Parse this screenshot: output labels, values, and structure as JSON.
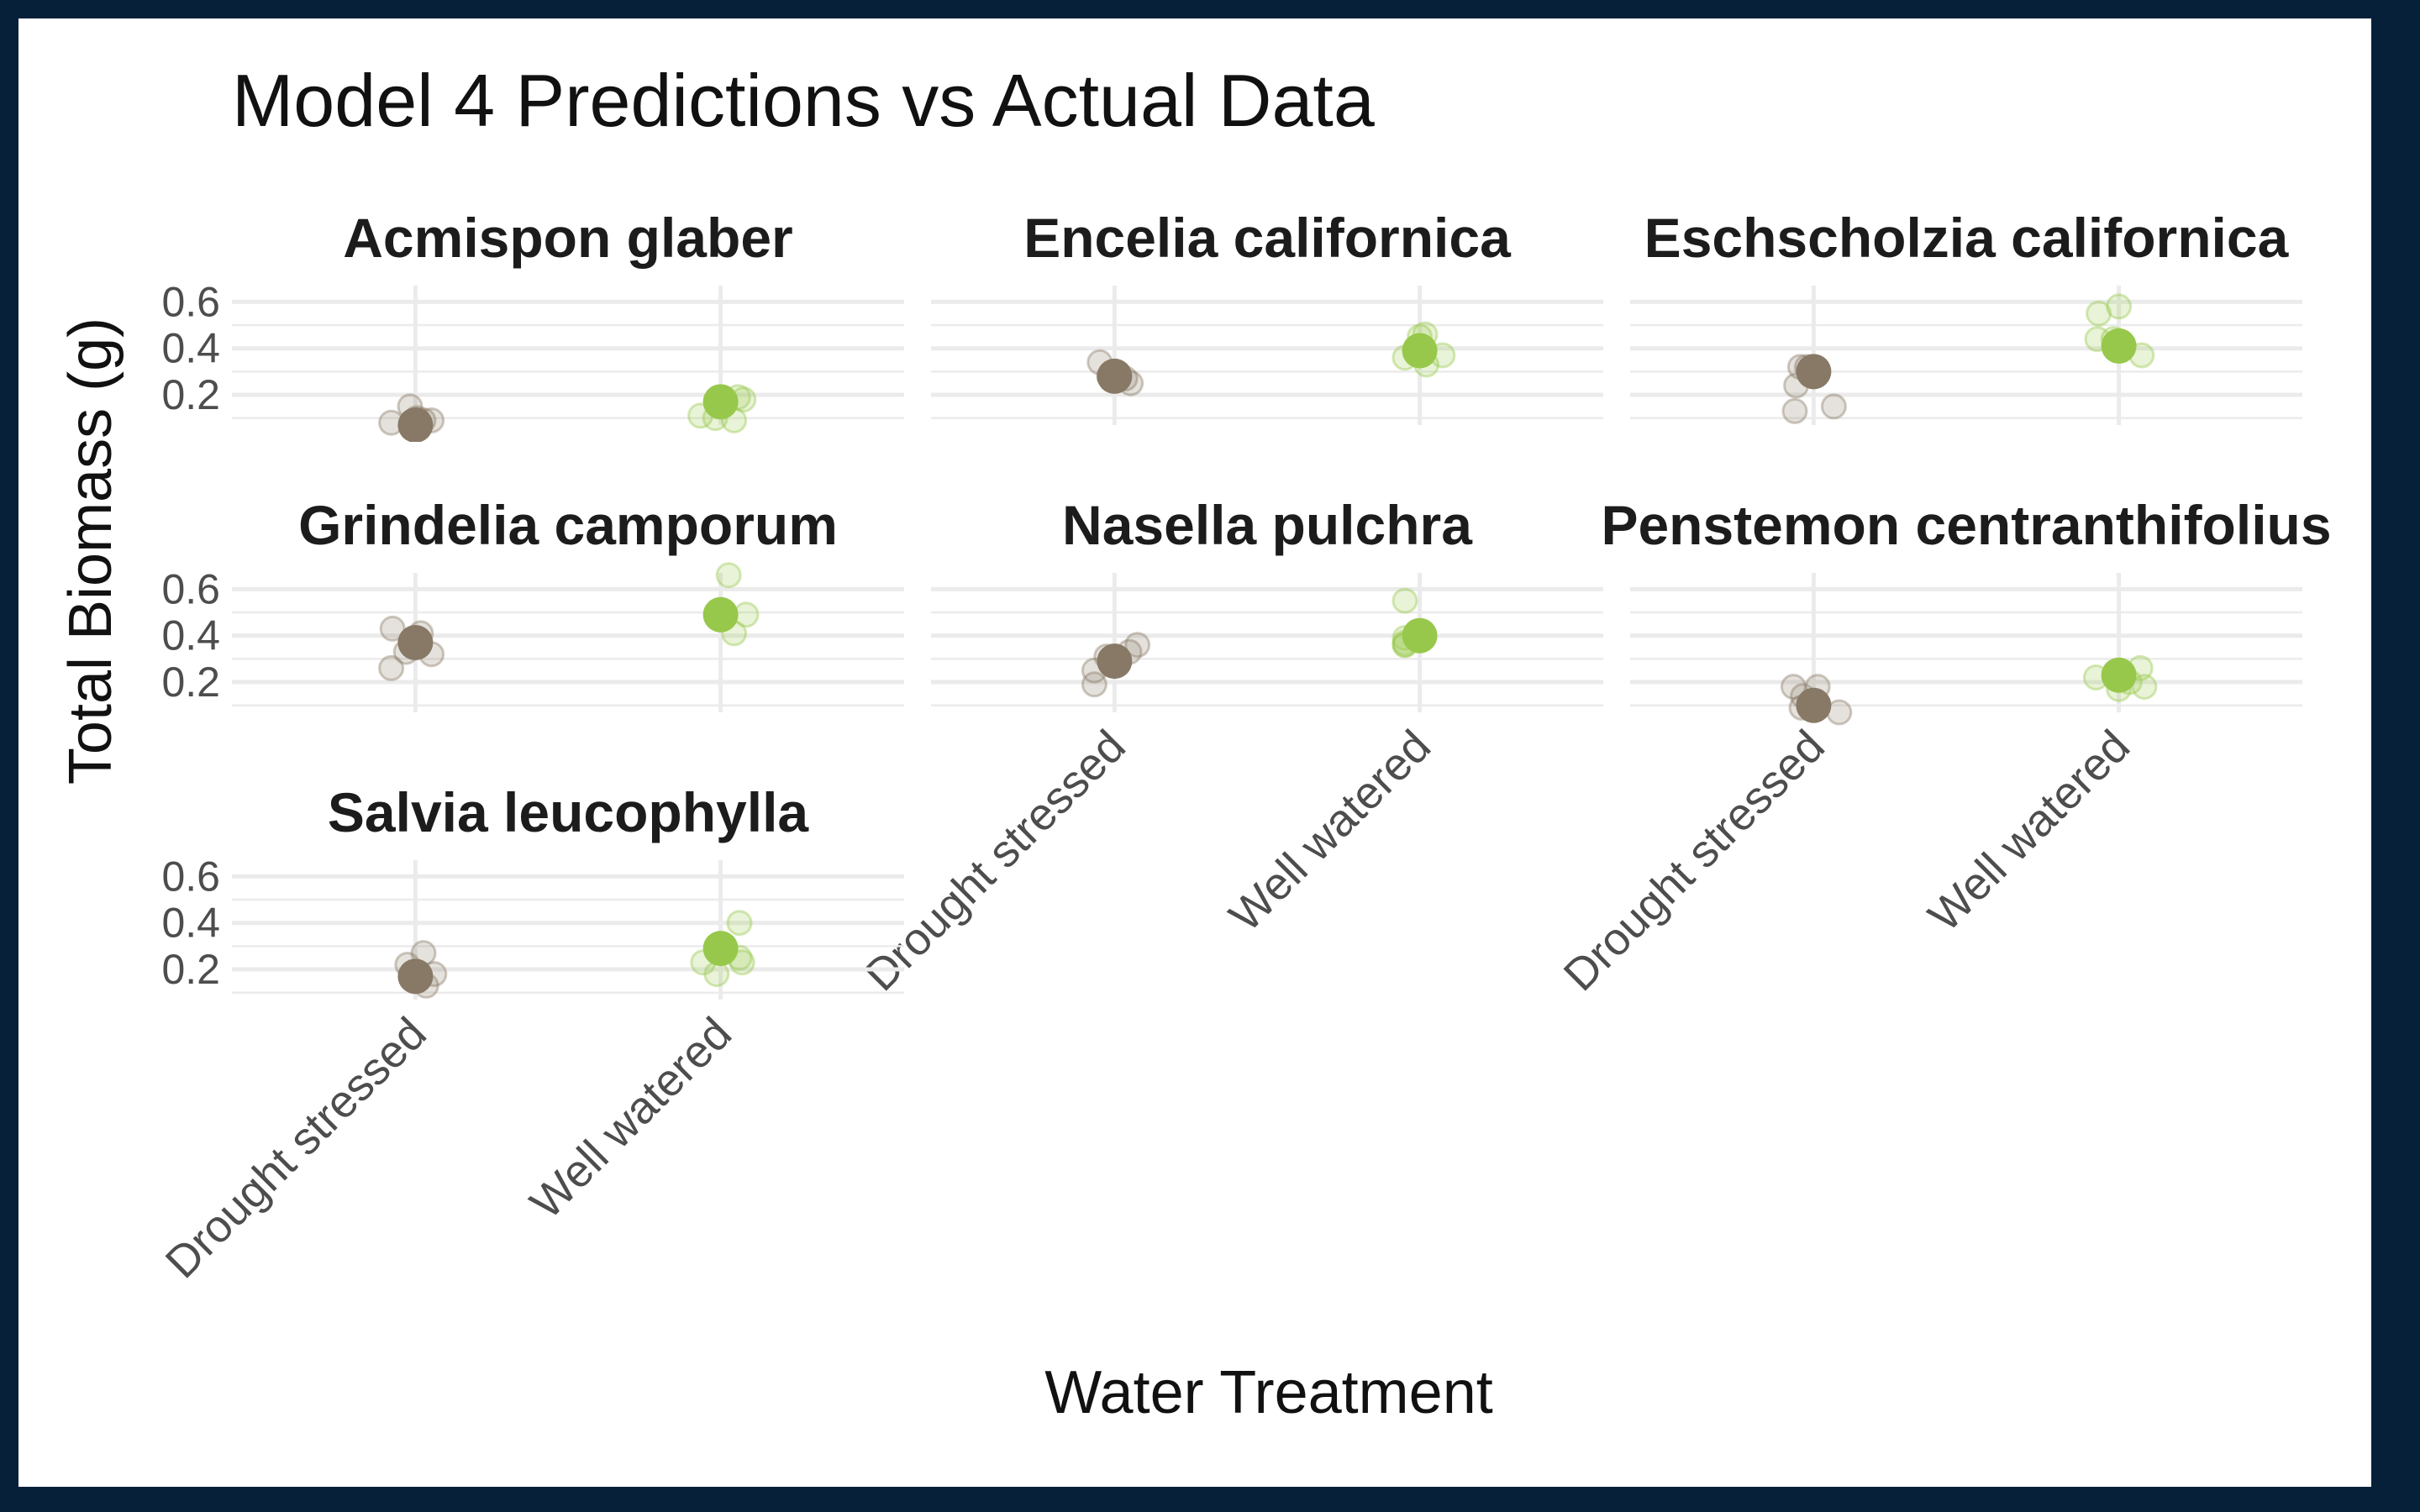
{
  "chart_data": {
    "type": "scatter",
    "title": "Model 4 Predictions vs Actual Data",
    "xlabel": "Water Treatment",
    "ylabel": "Total Biomass (g)",
    "categories": [
      "Drought stressed",
      "Well watered"
    ],
    "y_ticks": [
      0.2,
      0.4,
      0.6
    ],
    "y_tick_labels": [
      "0.2",
      "0.4",
      "0.6"
    ],
    "ylim": [
      0.07,
      0.67
    ],
    "grid": true,
    "layout": "faceted 3 columns",
    "colors": {
      "Drought stressed": "#877965",
      "Well watered": "#97c84b",
      "grid": "#ebebeb"
    },
    "panels": [
      {
        "strip_label": "Acmispon glaber",
        "predicted": [
          0.07,
          0.17
        ],
        "observed": [
          [
            [
              -0.18,
              0.08
            ],
            [
              -0.04,
              0.15
            ],
            [
              0.06,
              0.09
            ],
            [
              0.12,
              0.09
            ],
            [
              0.01,
              0.1
            ]
          ],
          [
            [
              -0.15,
              0.11
            ],
            [
              -0.04,
              0.1
            ],
            [
              0.1,
              0.09
            ],
            [
              0.13,
              0.19
            ],
            [
              0.17,
              0.18
            ]
          ]
        ]
      },
      {
        "strip_label": "Encelia californica",
        "predicted": [
          0.28,
          0.39
        ],
        "observed": [
          [
            [
              -0.11,
              0.34
            ],
            [
              -0.04,
              0.28
            ],
            [
              0.08,
              0.27
            ],
            [
              0.12,
              0.25
            ],
            [
              0.0,
              0.29
            ]
          ],
          [
            [
              -0.11,
              0.36
            ],
            [
              0.0,
              0.45
            ],
            [
              0.04,
              0.46
            ],
            [
              0.05,
              0.33
            ],
            [
              0.17,
              0.37
            ]
          ]
        ]
      },
      {
        "strip_label": "Eschscholzia californica",
        "predicted": [
          0.3,
          0.41
        ],
        "observed": [
          [
            [
              -0.14,
              0.13
            ],
            [
              -0.13,
              0.24
            ],
            [
              -0.1,
              0.32
            ],
            [
              -0.05,
              0.32
            ],
            [
              0.15,
              0.15
            ]
          ],
          [
            [
              -0.16,
              0.44
            ],
            [
              -0.15,
              0.55
            ],
            [
              -0.04,
              0.44
            ],
            [
              0.0,
              0.58
            ],
            [
              0.17,
              0.37
            ]
          ]
        ]
      },
      {
        "strip_label": "Grindelia camporum",
        "predicted": [
          0.37,
          0.49
        ],
        "observed": [
          [
            [
              -0.17,
              0.43
            ],
            [
              -0.18,
              0.26
            ],
            [
              -0.07,
              0.33
            ],
            [
              0.04,
              0.41
            ],
            [
              0.12,
              0.32
            ]
          ],
          [
            [
              0.06,
              0.66
            ],
            [
              0.1,
              0.41
            ],
            [
              0.19,
              0.49
            ],
            [
              -0.02,
              0.5
            ],
            [
              0.0,
              0.47
            ]
          ]
        ]
      },
      {
        "strip_label": "Nasella pulchra",
        "predicted": [
          0.29,
          0.4
        ],
        "observed": [
          [
            [
              -0.15,
              0.25
            ],
            [
              -0.15,
              0.19
            ],
            [
              -0.06,
              0.31
            ],
            [
              0.11,
              0.33
            ],
            [
              0.17,
              0.36
            ]
          ],
          [
            [
              -0.11,
              0.36
            ],
            [
              -0.11,
              0.39
            ],
            [
              -0.11,
              0.37
            ],
            [
              -0.11,
              0.55
            ],
            [
              -0.11,
              0.36
            ]
          ]
        ]
      },
      {
        "strip_label": "Penstemon centranthifolius",
        "predicted": [
          0.1,
          0.23
        ],
        "observed": [
          [
            [
              -0.15,
              0.18
            ],
            [
              -0.08,
              0.14
            ],
            [
              -0.09,
              0.09
            ],
            [
              0.03,
              0.18
            ],
            [
              0.19,
              0.07
            ]
          ],
          [
            [
              -0.17,
              0.22
            ],
            [
              0.0,
              0.17
            ],
            [
              0.08,
              0.2
            ],
            [
              0.16,
              0.26
            ],
            [
              0.19,
              0.18
            ]
          ]
        ]
      },
      {
        "strip_label": "Salvia leucophylla",
        "predicted": [
          0.17,
          0.29
        ],
        "observed": [
          [
            [
              -0.06,
              0.22
            ],
            [
              0.06,
              0.27
            ],
            [
              0.08,
              0.13
            ],
            [
              0.14,
              0.18
            ],
            [
              0.02,
              0.18
            ]
          ],
          [
            [
              -0.13,
              0.23
            ],
            [
              -0.03,
              0.18
            ],
            [
              0.14,
              0.4
            ],
            [
              0.14,
              0.25
            ],
            [
              0.16,
              0.23
            ]
          ]
        ]
      }
    ]
  }
}
